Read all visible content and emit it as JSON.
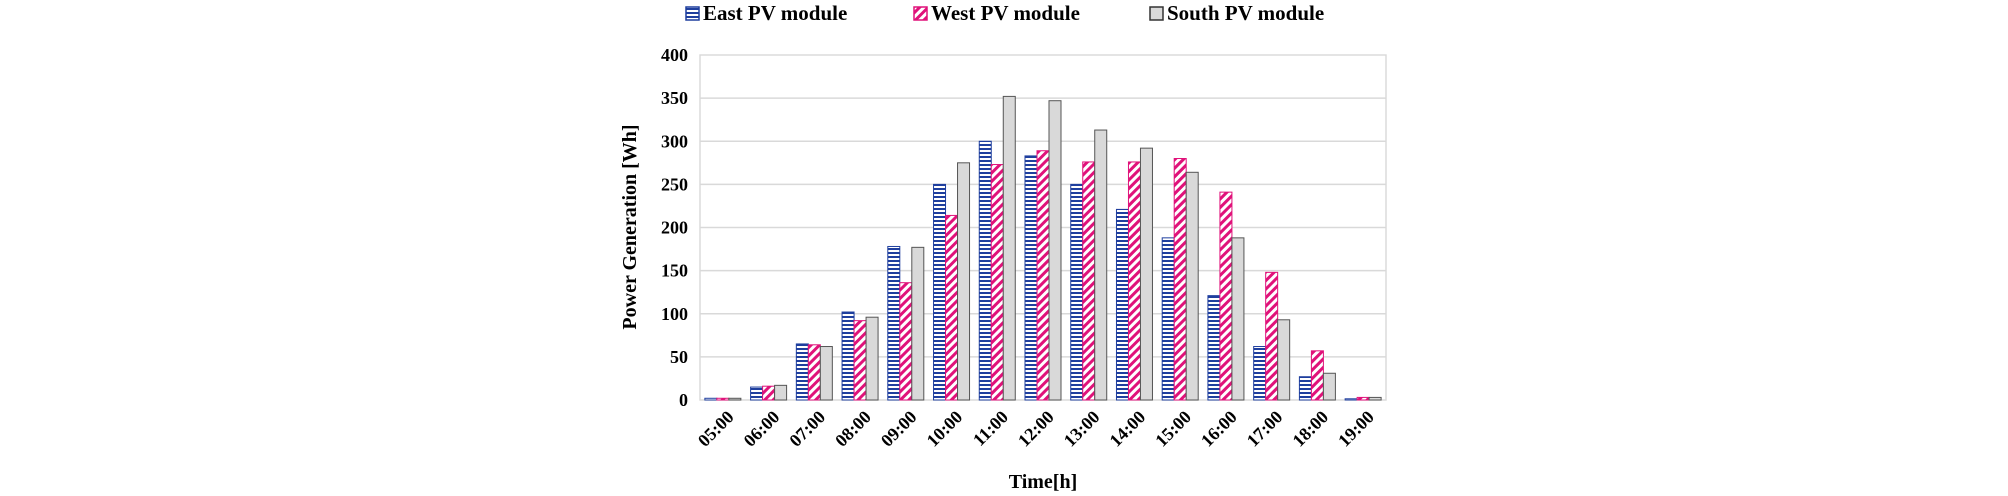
{
  "chart_data": {
    "type": "bar",
    "categories": [
      "05:00",
      "06:00",
      "07:00",
      "08:00",
      "09:00",
      "10:00",
      "11:00",
      "12:00",
      "13:00",
      "14:00",
      "15:00",
      "16:00",
      "17:00",
      "18:00",
      "19:00"
    ],
    "series": [
      {
        "name": "East PV module",
        "values": [
          2,
          15,
          65,
          102,
          178,
          250,
          300,
          283,
          250,
          221,
          188,
          121,
          62,
          27,
          1
        ],
        "pattern": "horizontal-stripes",
        "color": "#1f3f9e"
      },
      {
        "name": "West PV module",
        "values": [
          2,
          16,
          64,
          92,
          136,
          214,
          273,
          289,
          276,
          276,
          280,
          241,
          148,
          57,
          3
        ],
        "pattern": "diagonal-stripes",
        "color": "#e0127a"
      },
      {
        "name": "South PV module",
        "values": [
          2,
          17,
          62,
          96,
          177,
          275,
          352,
          347,
          313,
          292,
          264,
          188,
          93,
          31,
          3
        ],
        "pattern": "solid",
        "color": "#d9d9d9"
      }
    ],
    "xlabel": "Time[h]",
    "ylabel": "Power Generation [Wh]",
    "ylim": [
      0,
      400
    ],
    "yticks": [
      0,
      50,
      100,
      150,
      200,
      250,
      300,
      350,
      400
    ],
    "grid": true,
    "legend_position": "top"
  }
}
